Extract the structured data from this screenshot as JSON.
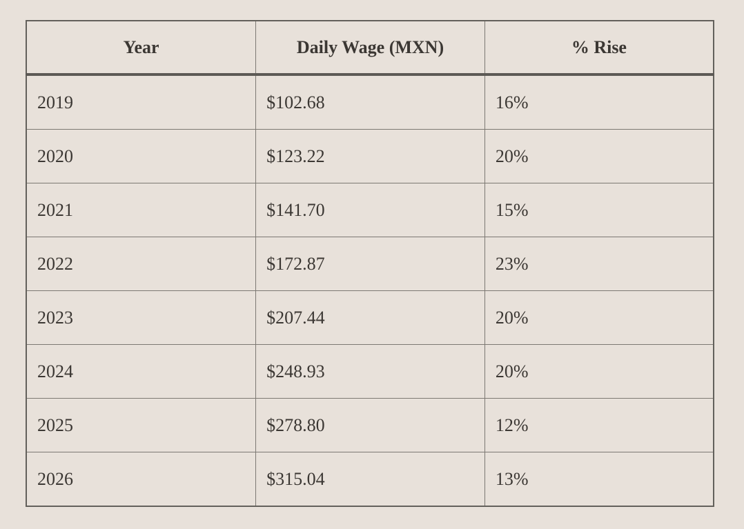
{
  "colors": {
    "background": "#e8e1da",
    "grid_border": "#7c7872",
    "outer_border": "#63605b",
    "header_rule": "#5c5955",
    "text": "#3b3733"
  },
  "table": {
    "columns": [
      {
        "label": "Year"
      },
      {
        "label": "Daily Wage (MXN)"
      },
      {
        "label": "% Rise"
      }
    ],
    "rows": [
      {
        "year": "2019",
        "wage": "$102.68",
        "rise": "16%"
      },
      {
        "year": "2020",
        "wage": "$123.22",
        "rise": "20%"
      },
      {
        "year": "2021",
        "wage": "$141.70",
        "rise": "15%"
      },
      {
        "year": "2022",
        "wage": "$172.87",
        "rise": "23%"
      },
      {
        "year": "2023",
        "wage": "$207.44",
        "rise": "20%"
      },
      {
        "year": "2024",
        "wage": "$248.93",
        "rise": "20%"
      },
      {
        "year": "2025",
        "wage": "$278.80",
        "rise": "12%"
      },
      {
        "year": "2026",
        "wage": "$315.04",
        "rise": "13%"
      }
    ]
  },
  "chart_data": {
    "type": "table",
    "title": "",
    "columns": [
      "Year",
      "Daily Wage (MXN)",
      "% Rise"
    ],
    "rows": [
      [
        "2019",
        "$102.68",
        "16%"
      ],
      [
        "2020",
        "$123.22",
        "20%"
      ],
      [
        "2021",
        "$141.70",
        "15%"
      ],
      [
        "2022",
        "$172.87",
        "23%"
      ],
      [
        "2023",
        "$207.44",
        "20%"
      ],
      [
        "2024",
        "$248.93",
        "20%"
      ],
      [
        "2025",
        "$278.80",
        "12%"
      ],
      [
        "2026",
        "$315.04",
        "13%"
      ]
    ],
    "years": [
      2019,
      2020,
      2021,
      2022,
      2023,
      2024,
      2025,
      2026
    ],
    "daily_wage_mxn": [
      102.68,
      123.22,
      141.7,
      172.87,
      207.44,
      248.93,
      278.8,
      315.04
    ],
    "pct_rise": [
      16,
      20,
      15,
      23,
      20,
      20,
      12,
      13
    ],
    "layout": {
      "grid": true,
      "header_bold": true,
      "header_align": "center",
      "cell_align": "left"
    }
  }
}
